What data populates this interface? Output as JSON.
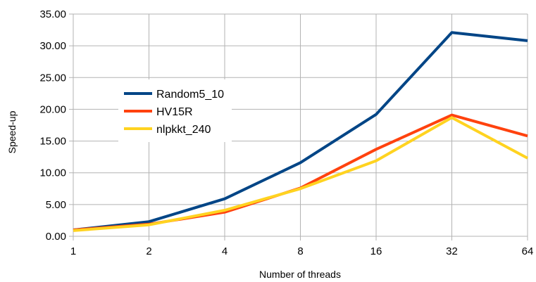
{
  "chart_data": {
    "type": "line",
    "title": "",
    "xlabel": "Number of threads",
    "ylabel": "Speed-up",
    "categories": [
      "1",
      "2",
      "4",
      "8",
      "16",
      "32",
      "64"
    ],
    "y_tick_labels": [
      "0.00",
      "5.00",
      "10.00",
      "15.00",
      "20.00",
      "25.00",
      "30.00",
      "35.00"
    ],
    "ylim": [
      0,
      35
    ],
    "grid": true,
    "legend_position": "top-left",
    "series": [
      {
        "name": "Random5_10",
        "color": "#004586",
        "values": [
          1.0,
          2.3,
          5.9,
          11.6,
          19.2,
          32.1,
          30.8
        ]
      },
      {
        "name": "HV15R",
        "color": "#ff420e",
        "values": [
          1.0,
          1.9,
          3.8,
          7.6,
          13.7,
          19.1,
          15.8
        ]
      },
      {
        "name": "nlpkkt_240",
        "color": "#ffd320",
        "values": [
          0.9,
          1.8,
          4.1,
          7.5,
          11.9,
          18.7,
          12.3
        ]
      }
    ]
  }
}
